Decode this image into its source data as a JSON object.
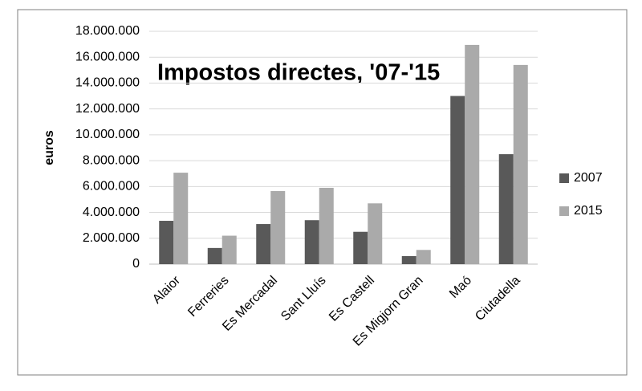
{
  "chart_data": {
    "type": "bar",
    "title": "Impostos directes, '07-'15",
    "y_label": "euros",
    "categories": [
      "Alaior",
      "Ferreries",
      "Es Mercadal",
      "Sant Lluís",
      "Es Castell",
      "Es Migjorn Gran",
      "Maó",
      "Ciutadella"
    ],
    "series": [
      {
        "name": "2007",
        "color": "#595959",
        "values": [
          3350000,
          1250000,
          3100000,
          3400000,
          2500000,
          620000,
          13000000,
          8500000
        ]
      },
      {
        "name": "2015",
        "color": "#aaaaaa",
        "values": [
          7070000,
          2200000,
          5650000,
          5900000,
          4700000,
          1100000,
          16950000,
          15400000
        ]
      }
    ],
    "ylim": [
      0,
      18000000
    ],
    "yticks": [
      0,
      {
        "value": 2000000,
        "label": "2.000.000"
      },
      {
        "value": 4000000,
        "label": "4.000.000"
      },
      {
        "value": 6000000,
        "label": "6.000.000"
      },
      {
        "value": 8000000,
        "label": "8.000.000"
      },
      {
        "value": 10000000,
        "label": "10.000.000"
      },
      {
        "value": 12000000,
        "label": "12.000.000"
      },
      {
        "value": 14000000,
        "label": "14.000.000"
      },
      {
        "value": 16000000,
        "label": "16.000.000"
      },
      {
        "value": 18000000,
        "label": "18.000.000"
      }
    ],
    "grid": true,
    "legend": "right"
  }
}
